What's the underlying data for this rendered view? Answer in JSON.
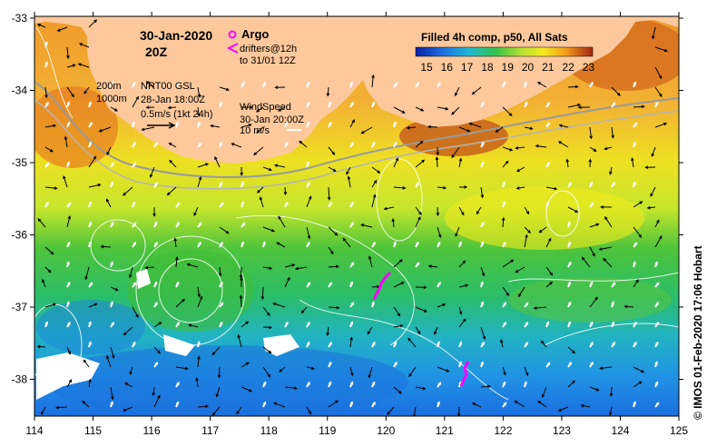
{
  "map": {
    "date": "30-Jan-2020",
    "hour": "20Z",
    "x_ticks": [
      "114",
      "115",
      "116",
      "117",
      "118",
      "119",
      "120",
      "121",
      "122",
      "123",
      "124",
      "125"
    ],
    "y_ticks": [
      "-33",
      "-34",
      "-35",
      "-36",
      "-37",
      "-38"
    ]
  },
  "legend": {
    "argo_label": "Argo",
    "drifters_label": "drifters@12h",
    "drifters_sub": "to 31/01 12Z",
    "isobath_200": "200m",
    "isobath_1000": "1000m",
    "gsl_title": "NRT00 GSL",
    "gsl_time": "28-Jan 18:00Z",
    "gsl_scale": "0.5m/s (1kt 24h)",
    "wind_title": "WindSpeed",
    "wind_time": "30-Jan 20:00Z",
    "wind_scale": "10 m/s"
  },
  "colorbar": {
    "title": "Filled 4h comp, p50, All Sats",
    "ticks": [
      "15",
      "16",
      "17",
      "18",
      "19",
      "20",
      "21",
      "22",
      "23"
    ]
  },
  "credit": "© IMOS 01-Feb-2020 17:06 Hobart",
  "colors": {
    "land": "#fdc99c",
    "sst_cold": "#1560d6",
    "sst_warm": "#9c2a10",
    "drifter": "#ff00ff"
  }
}
